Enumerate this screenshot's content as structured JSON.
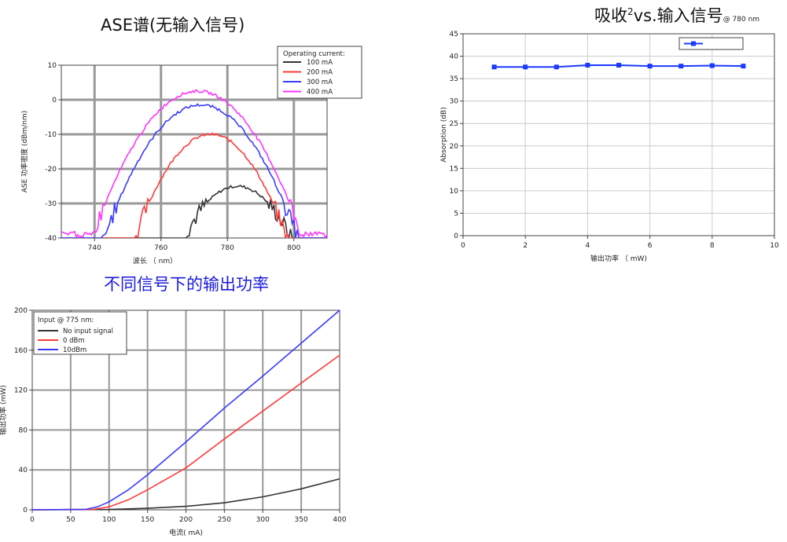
{
  "colors": {
    "black": "#333333",
    "red": "#ff3a3a",
    "blue": "#3a3aff",
    "magenta": "#ff33ff",
    "series_blue": "#1a3aff",
    "grid": "#999999",
    "grid_light": "#cccccc"
  },
  "chart_data": [
    {
      "id": "ase",
      "type": "line",
      "title": "ASE谱(无输入信号)",
      "xlabel": "波长 （ nm）",
      "ylabel": "ASE 功率密度 (dBm/nm)",
      "xlim": [
        730,
        810
      ],
      "ylim": [
        -40,
        10
      ],
      "xticks": [
        740,
        760,
        780,
        800
      ],
      "yticks": [
        10,
        0,
        -10,
        -20,
        -30,
        -40
      ],
      "grid": true,
      "legend_title": "Operating current:",
      "legend_position": "top-right",
      "series": [
        {
          "name": "100 mA",
          "peak_x": 783,
          "peak_y": -25,
          "sigma": 12,
          "noise_floor": -40
        },
        {
          "name": "200 mA",
          "peak_x": 775,
          "peak_y": -10,
          "sigma": 12,
          "noise_floor": -40
        },
        {
          "name": "300 mA",
          "peak_x": 772,
          "peak_y": -1.5,
          "sigma": 13.5,
          "noise_floor": -40
        },
        {
          "name": "400 mA",
          "peak_x": 771,
          "peak_y": 2.5,
          "sigma": 14,
          "noise_floor": -38
        }
      ]
    },
    {
      "id": "absorption",
      "type": "line",
      "title_main": "吸收",
      "title_sup": "2",
      "title_rest": "vs.输入信号",
      "title_small": "@ 780 nm",
      "xlabel": "输出功率 （ mW)",
      "ylabel": "Absorption (dB)",
      "xlim": [
        0,
        10
      ],
      "ylim": [
        0,
        45
      ],
      "xticks": [
        0,
        2,
        4,
        6,
        8,
        10
      ],
      "yticks": [
        0,
        5,
        10,
        15,
        20,
        25,
        30,
        35,
        40,
        45
      ],
      "grid": true,
      "legend_position": "top-right",
      "x": [
        1,
        2,
        3,
        4,
        5,
        6,
        7,
        8,
        9
      ],
      "y": [
        37.6,
        37.6,
        37.6,
        38.0,
        38.0,
        37.8,
        37.8,
        37.9,
        37.8
      ]
    },
    {
      "id": "power",
      "type": "line",
      "title": "不同信号下的输出功率",
      "xlabel": "电流( mA)",
      "ylabel": "输出功率 (mW)",
      "xlim": [
        0,
        400
      ],
      "ylim": [
        0,
        200
      ],
      "xticks": [
        0,
        50,
        100,
        150,
        200,
        250,
        300,
        350,
        400
      ],
      "yticks": [
        0,
        40,
        80,
        120,
        160,
        200
      ],
      "grid": true,
      "legend_title": "Input @ 775 nm:",
      "legend_position": "top-left",
      "series": [
        {
          "name": "No input signal",
          "x": [
            0,
            100,
            150,
            200,
            250,
            300,
            350,
            400
          ],
          "y": [
            0,
            0.3,
            1.5,
            3.5,
            7,
            13,
            21,
            31
          ]
        },
        {
          "name": "0 dBm",
          "x": [
            0,
            80,
            100,
            125,
            150,
            200,
            250,
            300,
            350,
            400
          ],
          "y": [
            0,
            0.5,
            3,
            10,
            20,
            42,
            71,
            99,
            127,
            155
          ]
        },
        {
          "name": "10dBm",
          "x": [
            0,
            70,
            85,
            100,
            125,
            150,
            200,
            250,
            300,
            350,
            400
          ],
          "y": [
            0,
            0.5,
            3,
            8,
            20,
            35,
            68,
            102,
            134,
            167,
            200
          ]
        }
      ]
    }
  ]
}
